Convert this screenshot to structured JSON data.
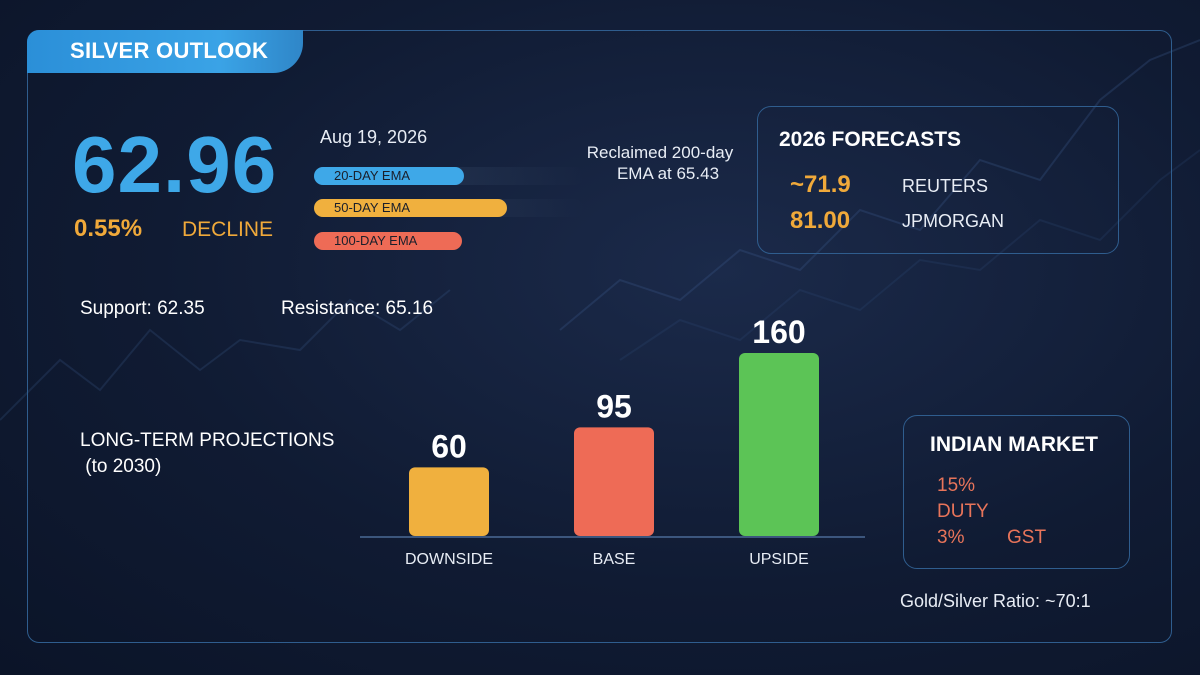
{
  "header": {
    "title": "SILVER OUTLOOK"
  },
  "price": {
    "value": "62.96",
    "change_pct": "0.55%",
    "change_label": "DECLINE",
    "date": "Aug 19, 2026"
  },
  "ema": {
    "items": [
      {
        "label": "20-DAY EMA",
        "color": "#3ea8e8"
      },
      {
        "label": "50-DAY EMA",
        "color": "#f0b03e"
      },
      {
        "label": "100-DAY EMA",
        "color": "#ee6b56"
      }
    ],
    "note_line1": "Reclaimed 200-day",
    "note_line2": "EMA at 65.43"
  },
  "forecasts": {
    "title": "2026 FORECASTS",
    "items": [
      {
        "value": "~71.9",
        "source": "REUTERS"
      },
      {
        "value": "81.00",
        "source": "JPMORGAN"
      }
    ]
  },
  "levels": {
    "support": "Support: 62.35",
    "resistance": "Resistance: 65.16"
  },
  "projections": {
    "title_line1": "LONG-TERM PROJECTIONS",
    "title_line2": " (to 2030)"
  },
  "chart_data": {
    "type": "bar",
    "categories": [
      "DOWNSIDE",
      "BASE",
      "UPSIDE"
    ],
    "values": [
      60,
      95,
      160
    ],
    "colors": [
      "#f0b03e",
      "#ee6b56",
      "#5cc456"
    ],
    "ylim": [
      0,
      160
    ]
  },
  "indian_market": {
    "title": "INDIAN MARKET",
    "duty_pct": "15%",
    "duty_label": "DUTY",
    "gst_pct": "3%",
    "gst_label": "GST"
  },
  "ratio": "Gold/Silver Ratio: ~70:1"
}
